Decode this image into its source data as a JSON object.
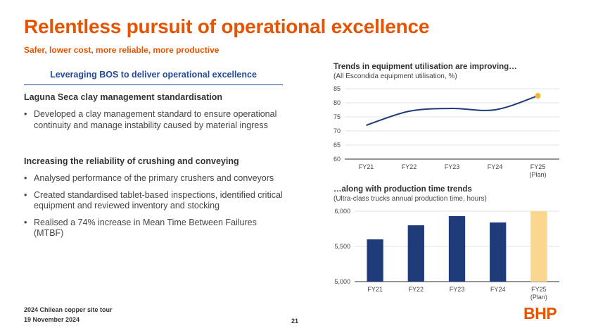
{
  "slide": {
    "title": "Relentless pursuit of operational excellence",
    "subtitle": "Safer, lower cost, more reliable, more productive"
  },
  "left_panel": {
    "header": "Leveraging BOS to deliver operational excellence",
    "sections": [
      {
        "heading": "Laguna Seca clay management standardisation",
        "bullets": [
          "Developed a clay management standard to ensure operational continuity and manage instability caused by material ingress"
        ]
      },
      {
        "heading": "Increasing the reliability of crushing and conveying",
        "bullets": [
          "Analysed performance of the primary crushers and conveyors",
          "Created standardised tablet-based inspections, identified critical equipment and reviewed inventory and stocking",
          "Realised a 74% increase in Mean Time Between Failures (MTBF)"
        ]
      }
    ]
  },
  "chart_data": [
    {
      "type": "line",
      "title": "Trends in equipment utilisation are improving…",
      "subtitle": "(All Escondida equipment utilisation, %)",
      "categories": [
        "FY21",
        "FY22",
        "FY23",
        "FY24",
        "FY25"
      ],
      "category_sublabels": [
        "",
        "",
        "",
        "",
        "(Plan)"
      ],
      "values": [
        72,
        77,
        78,
        77.5,
        82.5
      ],
      "highlight_index": 4,
      "ylim": [
        60,
        85
      ],
      "yticks": [
        "85",
        "80",
        "75",
        "70",
        "65",
        "60"
      ],
      "ytick_values": [
        85,
        80,
        75,
        70,
        65,
        60
      ],
      "line_color": "#1f3b7a",
      "highlight_color": "#f5b731",
      "grid": true
    },
    {
      "type": "bar",
      "title": "…along with production time trends",
      "subtitle": "(Ultra-class trucks annual production time, hours)",
      "categories": [
        "FY21",
        "FY22",
        "FY23",
        "FY24",
        "FY25"
      ],
      "category_sublabels": [
        "",
        "",
        "",
        "",
        "(Plan)"
      ],
      "values": [
        5600,
        5800,
        5930,
        5840,
        6000
      ],
      "highlight_index": 4,
      "ylim": [
        5000,
        6000
      ],
      "yticks": [
        "6,000",
        "5,500",
        "5,000"
      ],
      "ytick_values": [
        6000,
        5500,
        5000
      ],
      "bar_color": "#1f3b7a",
      "highlight_color": "#fbd68f",
      "grid": true
    }
  ],
  "footer": {
    "event": "2024 Chilean copper site tour",
    "date": "19 November 2024",
    "page": "21",
    "logo": "BHP"
  }
}
